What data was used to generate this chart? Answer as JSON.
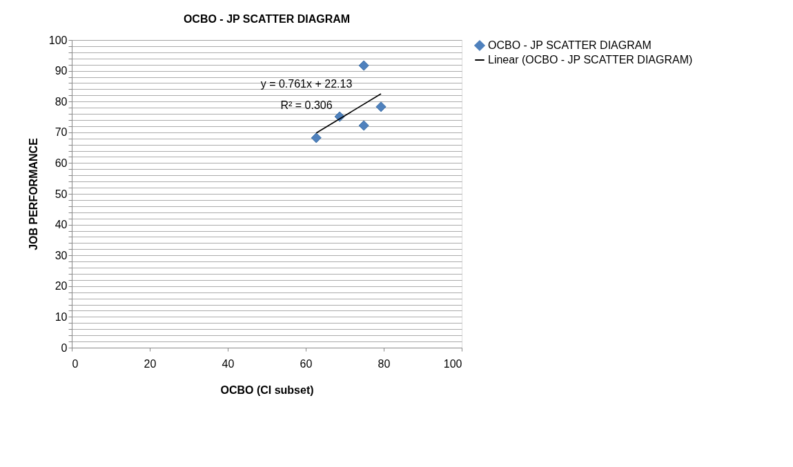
{
  "chart_data": {
    "type": "scatter",
    "title": "OCBO - JP SCATTER DIAGRAM",
    "xlabel": "OCBO (CI subset)",
    "ylabel": "JOB PERFORMANCE",
    "series": [
      {
        "name": "OCBO - JP SCATTER DIAGRAM",
        "color": "#4f81bd",
        "marker": "diamond",
        "x": [
          62.7,
          68.7,
          74.9,
          74.9,
          79.3
        ],
        "values": [
          68.2,
          75.1,
          91.7,
          72.2,
          78.3
        ]
      },
      {
        "name": "Linear (OCBO - JP SCATTER DIAGRAM)",
        "type": "line",
        "color": "#000000",
        "x": [
          62.7,
          79.3
        ],
        "values": [
          69.8,
          82.5
        ]
      }
    ],
    "xlim": [
      0,
      100
    ],
    "xticks": [
      0,
      20,
      40,
      60,
      80,
      100
    ],
    "ylim": [
      0,
      100
    ],
    "yticks": [
      0,
      {
        "value": 2,
        "label": null
      },
      {
        "value": 4,
        "label": null
      },
      {
        "value": 6,
        "label": null
      },
      {
        "value": 8,
        "label": null
      },
      10,
      {
        "value": 12,
        "label": null
      },
      {
        "value": 14,
        "label": null
      },
      {
        "value": 16,
        "label": null
      },
      {
        "value": 18,
        "label": null
      },
      20,
      {
        "value": 22,
        "label": null
      },
      {
        "value": 24,
        "label": null
      },
      {
        "value": 26,
        "label": null
      },
      {
        "value": 28,
        "label": null
      },
      30,
      {
        "value": 32,
        "label": null
      },
      {
        "value": 34,
        "label": null
      },
      {
        "value": 36,
        "label": null
      },
      {
        "value": 38,
        "label": null
      },
      40,
      {
        "value": 42,
        "label": null
      },
      {
        "value": 44,
        "label": null
      },
      {
        "value": 46,
        "label": null
      },
      {
        "value": 48,
        "label": null
      },
      50,
      {
        "value": 52,
        "label": null
      },
      {
        "value": 54,
        "label": null
      },
      {
        "value": 56,
        "label": null
      },
      {
        "value": 58,
        "label": null
      },
      60,
      {
        "value": 62,
        "label": null
      },
      {
        "value": 64,
        "label": null
      },
      {
        "value": 66,
        "label": null
      },
      {
        "value": 68,
        "label": null
      },
      70,
      {
        "value": 72,
        "label": null
      },
      {
        "value": 74,
        "label": null
      },
      {
        "value": 76,
        "label": null
      },
      {
        "value": 78,
        "label": null
      },
      80,
      {
        "value": 82,
        "label": null
      },
      {
        "value": 84,
        "label": null
      },
      {
        "value": 86,
        "label": null
      },
      {
        "value": 88,
        "label": null
      },
      90,
      {
        "value": 92,
        "label": null
      },
      {
        "value": 94,
        "label": null
      },
      {
        "value": 96,
        "label": null
      },
      {
        "value": 98,
        "label": null
      },
      100
    ],
    "grid": "y",
    "legend": "right",
    "annotations": [
      "y = 0.761x + 22.13",
      "R² = 0.306"
    ]
  }
}
